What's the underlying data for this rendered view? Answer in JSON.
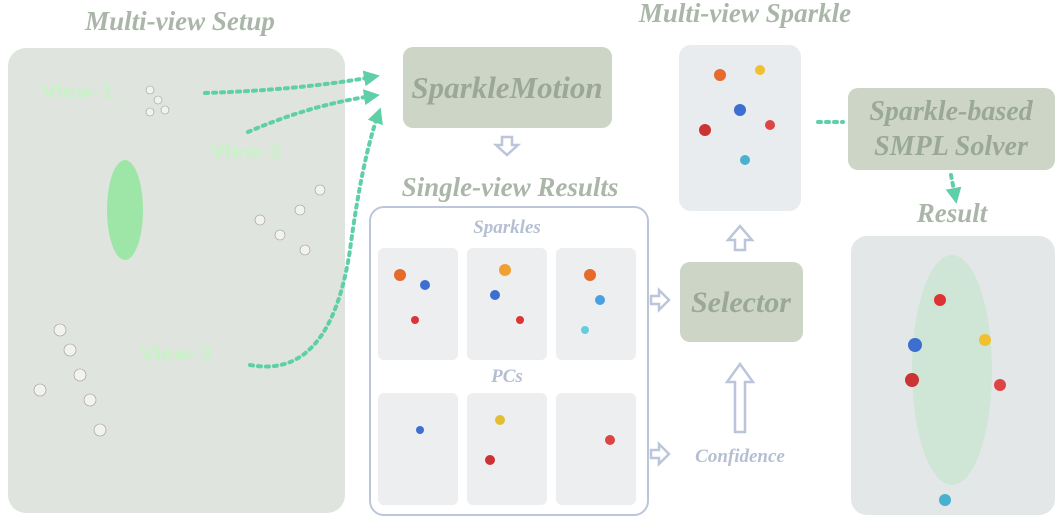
{
  "setup": {
    "title": "Multi-view Setup",
    "views": [
      "View-1",
      "View-2",
      "View-3"
    ]
  },
  "pipeline": {
    "motion": "SparkleMotion",
    "single_view": {
      "title": "Single-view Results",
      "sparkles": "Sparkles",
      "pcs": "PCs"
    },
    "selector": "Selector",
    "confidence": "Confidence",
    "multi_view": "Multi-view Sparkle",
    "solver": [
      "Sparkle-based",
      "SMPL Solver"
    ],
    "result": "Result"
  }
}
